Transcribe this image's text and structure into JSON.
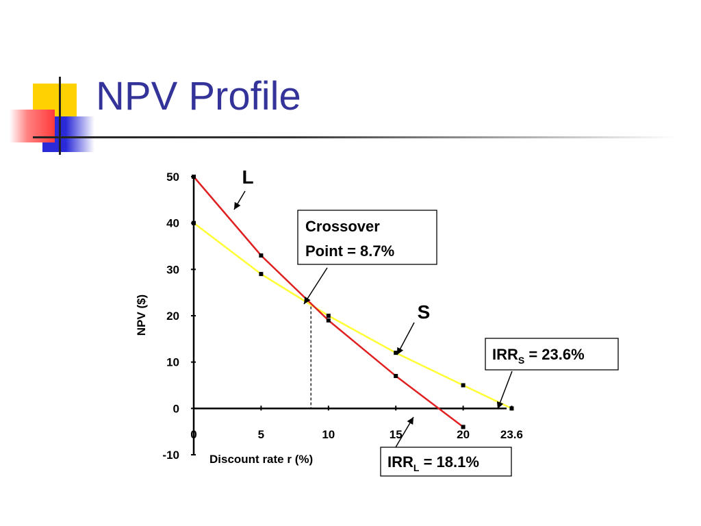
{
  "slide": {
    "title": "NPV Profile",
    "accent_colors": {
      "yellow": "#ffd200",
      "red": "#ff4d4d",
      "blue": "#2a2ad8",
      "title": "#333399"
    }
  },
  "chart_data": {
    "type": "line",
    "title": "",
    "xlabel": "Discount rate r (%)",
    "ylabel": "NPV ($)",
    "xlim": [
      0,
      25
    ],
    "ylim": [
      -10,
      50
    ],
    "x_ticks": [
      0,
      5,
      10,
      15,
      20,
      23.6
    ],
    "x_tick_labels": [
      "0",
      "5",
      "10",
      "15",
      "20",
      "23.6"
    ],
    "y_ticks": [
      -10,
      0,
      10,
      20,
      30,
      40,
      50
    ],
    "y_tick_labels": [
      "-10",
      "0",
      "10",
      "20",
      "30",
      "40",
      "50"
    ],
    "grid": false,
    "legend": "none",
    "series": [
      {
        "name": "L",
        "color": "#e02020",
        "x": [
          0,
          5,
          10,
          15,
          20
        ],
        "y": [
          50,
          33,
          19,
          7,
          -4
        ]
      },
      {
        "name": "S",
        "color": "#ffff33",
        "x": [
          0,
          5,
          10,
          15,
          20,
          23.6
        ],
        "y": [
          40,
          29,
          20,
          12,
          5,
          0
        ]
      }
    ],
    "crossover": {
      "x": 8.7,
      "y": 22
    },
    "annotations": {
      "crossover_line1": "Crossover",
      "crossover_line2": "Point  =  8.7%",
      "irr_s_main": "IRR",
      "irr_s_sub": "S",
      "irr_s_value": " = 23.6%",
      "irr_l_main": "IRR",
      "irr_l_sub": "L",
      "irr_l_value": " = 18.1%"
    }
  }
}
